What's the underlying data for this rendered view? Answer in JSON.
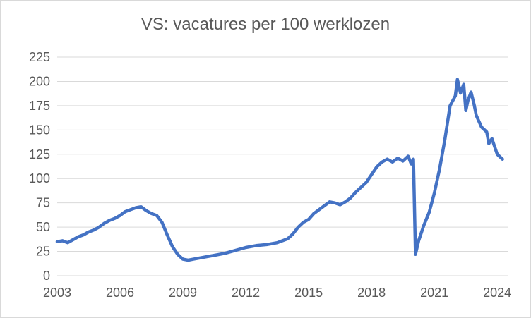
{
  "chart_data": {
    "type": "line",
    "title": "VS: vacatures per 100 werklozen",
    "xlabel": "",
    "ylabel": "",
    "xlim": [
      2003.0,
      2024.5
    ],
    "ylim": [
      0,
      225
    ],
    "grid": "horizontal",
    "legend": "none",
    "x_ticks": [
      {
        "value": 2003,
        "label": "2003"
      },
      {
        "value": 2006,
        "label": "2006"
      },
      {
        "value": 2009,
        "label": "2009"
      },
      {
        "value": 2012,
        "label": "2012"
      },
      {
        "value": 2015,
        "label": "2015"
      },
      {
        "value": 2018,
        "label": "2018"
      },
      {
        "value": 2021,
        "label": "2021"
      },
      {
        "value": 2024,
        "label": "2024"
      }
    ],
    "y_ticks": [
      {
        "value": 0,
        "label": "0"
      },
      {
        "value": 25,
        "label": "25"
      },
      {
        "value": 50,
        "label": "50"
      },
      {
        "value": 75,
        "label": "75"
      },
      {
        "value": 100,
        "label": "100"
      },
      {
        "value": 125,
        "label": "125"
      },
      {
        "value": 150,
        "label": "150"
      },
      {
        "value": 175,
        "label": "175"
      },
      {
        "value": 200,
        "label": "200"
      },
      {
        "value": 225,
        "label": "225"
      }
    ],
    "series": [
      {
        "color": "#4472c4",
        "x": [
          2003.0,
          2003.25,
          2003.5,
          2003.75,
          2004.0,
          2004.25,
          2004.5,
          2004.75,
          2005.0,
          2005.25,
          2005.5,
          2005.75,
          2006.0,
          2006.25,
          2006.5,
          2006.75,
          2007.0,
          2007.25,
          2007.5,
          2007.75,
          2008.0,
          2008.25,
          2008.5,
          2008.75,
          2009.0,
          2009.25,
          2009.5,
          2009.75,
          2010.0,
          2010.5,
          2011.0,
          2011.5,
          2012.0,
          2012.5,
          2013.0,
          2013.5,
          2014.0,
          2014.25,
          2014.5,
          2014.75,
          2015.0,
          2015.25,
          2015.5,
          2015.75,
          2016.0,
          2016.25,
          2016.5,
          2016.75,
          2017.0,
          2017.25,
          2017.5,
          2017.75,
          2018.0,
          2018.25,
          2018.5,
          2018.75,
          2019.0,
          2019.25,
          2019.5,
          2019.75,
          2019.9,
          2020.0,
          2020.1,
          2020.25,
          2020.5,
          2020.75,
          2021.0,
          2021.25,
          2021.5,
          2021.75,
          2022.0,
          2022.1,
          2022.25,
          2022.4,
          2022.5,
          2022.6,
          2022.75,
          2022.9,
          2023.0,
          2023.25,
          2023.5,
          2023.6,
          2023.75,
          2024.0,
          2024.25
        ],
        "values": [
          35,
          36,
          34,
          37,
          40,
          42,
          45,
          47,
          50,
          54,
          57,
          59,
          62,
          66,
          68,
          70,
          71,
          67,
          64,
          62,
          55,
          42,
          30,
          22,
          17,
          16,
          17,
          18,
          19,
          21,
          23,
          26,
          29,
          31,
          32,
          34,
          38,
          43,
          50,
          55,
          58,
          64,
          68,
          72,
          76,
          75,
          73,
          76,
          80,
          86,
          91,
          96,
          104,
          112,
          117,
          120,
          117,
          121,
          118,
          123,
          115,
          120,
          22,
          36,
          52,
          65,
          85,
          110,
          140,
          175,
          185,
          202,
          188,
          197,
          170,
          180,
          189,
          176,
          165,
          153,
          148,
          136,
          141,
          125,
          120
        ]
      }
    ]
  }
}
